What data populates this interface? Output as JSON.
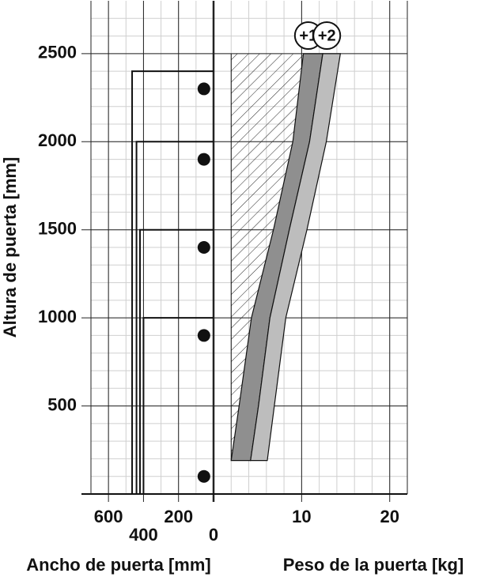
{
  "chart_data": {
    "type": "door-chart",
    "y_label": "Altura de puerta [mm]",
    "x_label": "Ancho de puerta [mm]",
    "x2_label": "Peso de la puerta [kg]",
    "ylim": [
      0,
      2800
    ],
    "yticks": [
      500,
      1000,
      1500,
      2000,
      2500
    ],
    "xlim": [
      700,
      0
    ],
    "xticks": [
      600,
      400,
      200,
      0
    ],
    "x2lim": [
      0,
      22
    ],
    "x2ticks": [
      10,
      20
    ],
    "grid": true,
    "doors": {
      "widths": [
        465,
        440,
        420,
        400
      ],
      "heights": [
        2400,
        2000,
        1500,
        1000
      ]
    },
    "hinges": {
      "width": [
        55,
        55,
        55,
        55,
        55
      ],
      "heights": [
        2300,
        1900,
        1400,
        900,
        100
      ]
    },
    "heights": [
      190,
      500,
      1000,
      1500,
      2000,
      2500
    ],
    "hatch": {
      "values": [
        2,
        2,
        2,
        2,
        2,
        2
      ]
    },
    "series": [
      {
        "name": "+1",
        "color": "#8f8f8f",
        "lower": [
          2,
          2.9,
          4.3,
          6.8,
          9,
          10.2
        ],
        "upper": [
          4.2,
          5.1,
          6.4,
          8.6,
          10.9,
          12.4
        ]
      },
      {
        "name": "+2",
        "color": "#bdbdbd",
        "lower": [
          4.2,
          5.1,
          6.4,
          8.6,
          10.9,
          12.4
        ],
        "upper": [
          6.1,
          6.9,
          8.2,
          10.6,
          12.8,
          14.4
        ]
      }
    ]
  }
}
